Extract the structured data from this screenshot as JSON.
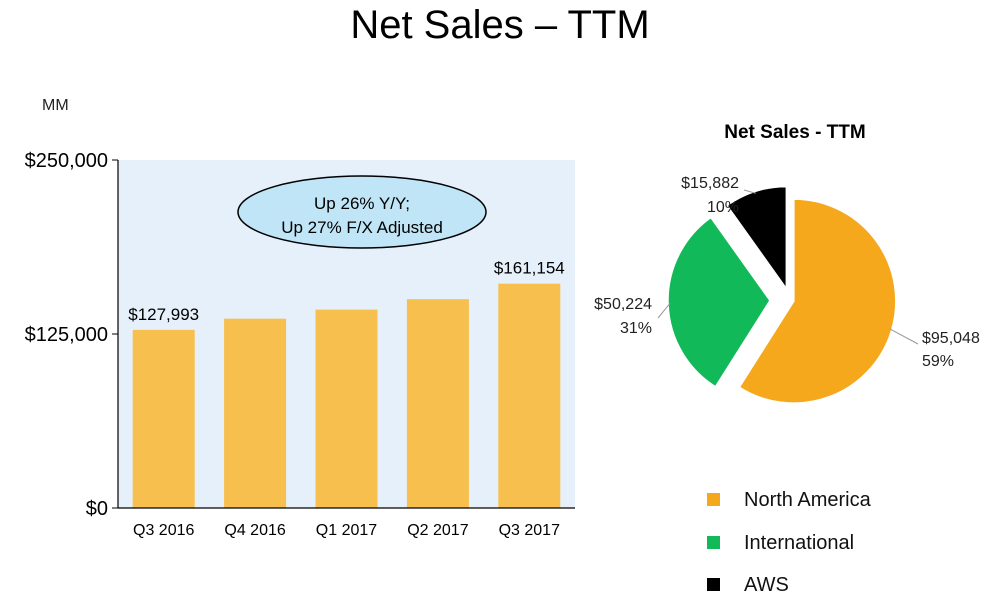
{
  "title": "Net Sales – TTM",
  "colors": {
    "plot_bg": "#e6f0fb",
    "bar": "#f7bf4e",
    "callout_fill": "#bfe5f7",
    "north_america": "#f6a81c",
    "international": "#12b959",
    "aws": "#000000"
  },
  "chart_data": [
    {
      "type": "bar",
      "unit_label": "MM",
      "categories": [
        "Q3 2016",
        "Q4 2016",
        "Q1 2017",
        "Q2 2017",
        "Q3 2017"
      ],
      "values": [
        127993,
        136000,
        142500,
        150000,
        161154
      ],
      "data_labels": [
        "$127,993",
        "",
        "",
        "",
        "$161,154"
      ],
      "ylim": [
        0,
        250000
      ],
      "yticks": [
        {
          "value": 0,
          "label": "$0"
        },
        {
          "value": 125000,
          "label": "$125,000"
        },
        {
          "value": 250000,
          "label": "$250,000"
        }
      ],
      "callout": [
        "Up 26% Y/Y;",
        "Up 27% F/X Adjusted"
      ],
      "grid": false
    },
    {
      "type": "pie",
      "title": "Net Sales - TTM",
      "slices": [
        {
          "name": "North America",
          "value": 95048,
          "value_label": "$95,048",
          "percent_label": "59%"
        },
        {
          "name": "International",
          "value": 50224,
          "value_label": "$50,224",
          "percent_label": "31%"
        },
        {
          "name": "AWS",
          "value": 15882,
          "value_label": "$15,882",
          "percent_label": "10%"
        }
      ],
      "legend_position": "bottom"
    }
  ]
}
